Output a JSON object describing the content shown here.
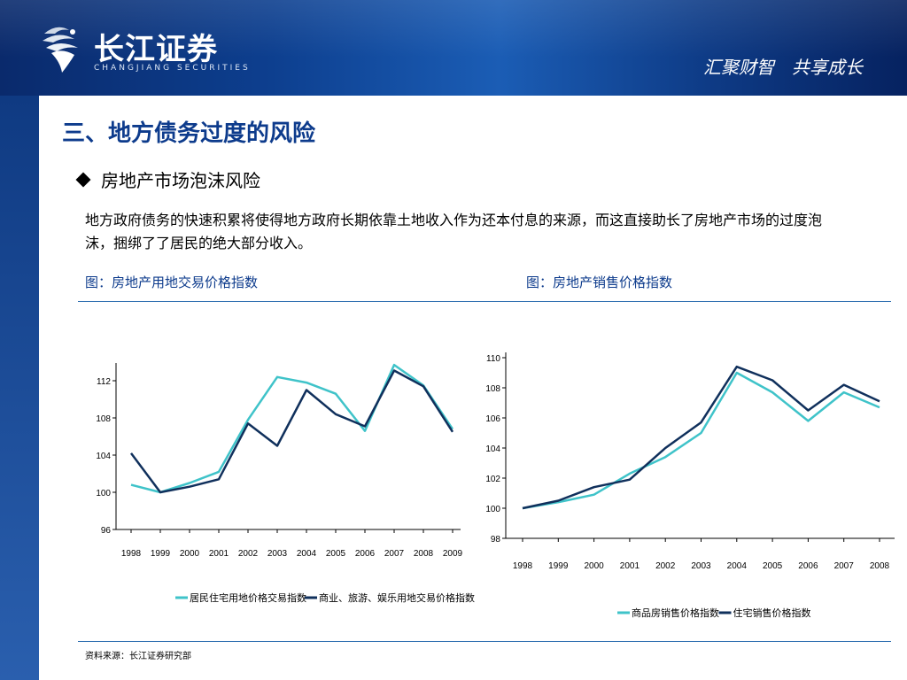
{
  "header": {
    "brand_cn": "长江证券",
    "brand_en": "CHANGJIANG SECURITIES",
    "slogan": "汇聚财智　共享成长"
  },
  "slide": {
    "title": "三、地方债务过度的风险",
    "subtitle": "房地产市场泡沫风险",
    "paragraph": "地方政府债务的快速积累将使得地方政府长期依靠土地收入作为还本付息的来源，而这直接助长了房地产市场的过度泡沫，捆绑了了居民的绝大部分收入。",
    "fig1_label": "图：房地产用地交易价格指数",
    "fig2_label": "图：房地产销售价格指数",
    "source": "资料来源：长江证券研究部"
  },
  "chart_data": [
    {
      "type": "line",
      "title": "",
      "xlabel": "",
      "ylabel": "",
      "categories": [
        "1998",
        "1999",
        "2000",
        "2001",
        "2002",
        "2003",
        "2004",
        "2005",
        "2006",
        "2007",
        "2008",
        "2009"
      ],
      "ylim": [
        96,
        114
      ],
      "yticks": [
        96,
        100,
        104,
        108,
        112
      ],
      "grid": false,
      "legend": "bottom",
      "series": [
        {
          "name": "居民住宅用地价格交易指数",
          "color": "#3fc3c9",
          "values": [
            100.8,
            100.0,
            101.0,
            102.2,
            107.8,
            112.4,
            111.8,
            110.6,
            106.6,
            113.7,
            111.5,
            106.8
          ]
        },
        {
          "name": "商业、旅游、娱乐用地交易价格指数",
          "color": "#10305c",
          "values": [
            104.2,
            100.0,
            100.6,
            101.4,
            107.4,
            105.0,
            111.0,
            108.4,
            107.1,
            113.1,
            111.4,
            106.5
          ]
        }
      ]
    },
    {
      "type": "line",
      "title": "",
      "xlabel": "",
      "ylabel": "",
      "categories": [
        "1998",
        "1999",
        "2000",
        "2001",
        "2002",
        "2003",
        "2004",
        "2005",
        "2006",
        "2007",
        "2008"
      ],
      "ylim": [
        98,
        110
      ],
      "yticks": [
        98,
        100,
        102,
        104,
        106,
        108,
        110
      ],
      "grid": false,
      "legend": "bottom",
      "series": [
        {
          "name": "商品房销售价格指数",
          "color": "#3fc3c9",
          "values": [
            100.0,
            100.4,
            100.9,
            102.3,
            103.4,
            105.0,
            109.0,
            107.7,
            105.8,
            107.7,
            106.7
          ]
        },
        {
          "name": "住宅销售价格指数",
          "color": "#10305c",
          "values": [
            100.0,
            100.5,
            101.4,
            101.9,
            104.0,
            105.7,
            109.4,
            108.5,
            106.5,
            108.2,
            107.1
          ]
        }
      ]
    }
  ]
}
